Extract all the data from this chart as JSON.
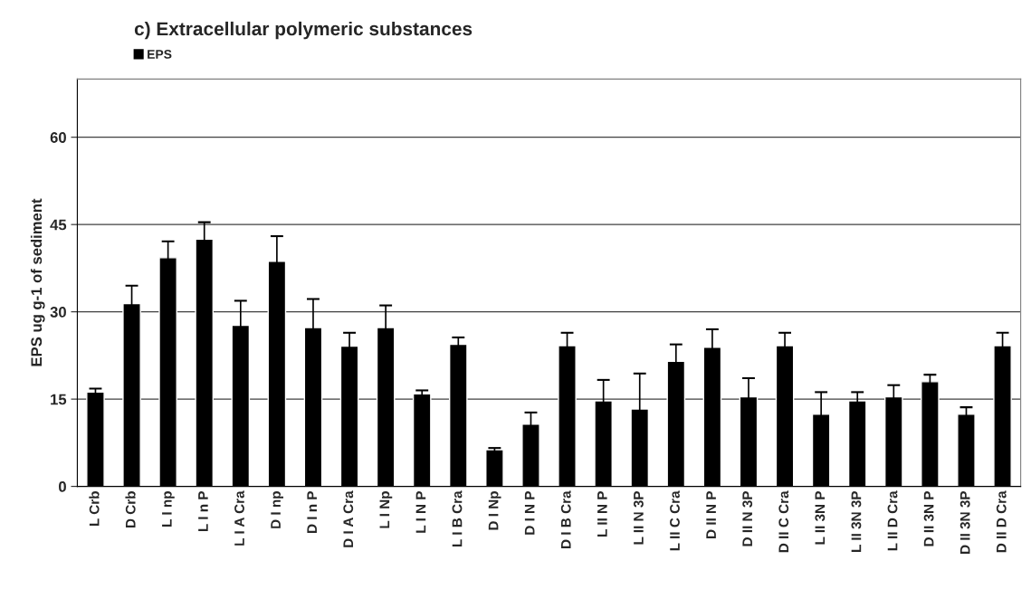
{
  "chart_data": {
    "type": "bar",
    "title": "c) Extracellular polymeric substances",
    "ylabel": "EPS ug g-1 of sediment",
    "categories": [
      "L Crb",
      "D Crb",
      "L I np",
      "L I n P",
      "L I A Cra",
      "D I np",
      "D I n P",
      "D I A Cra",
      "L I Np",
      "L I N P",
      "L I B Cra",
      "D I Np",
      "D I N P",
      "D I B Cra",
      "L II N P",
      "L II N 3P",
      "L II C Cra",
      "D II N P",
      "D II N 3P",
      "D II C Cra",
      "L II 3N P",
      "L II 3N 3P",
      "L II D Cra",
      "D II 3N P",
      "D II 3N 3P",
      "D II D Cra"
    ],
    "series": [
      {
        "name": "EPS",
        "color": "#000000",
        "values": [
          16.2,
          31.4,
          39.3,
          42.5,
          27.7,
          38.7,
          27.3,
          24.1,
          27.3,
          15.9,
          24.4,
          6.3,
          10.7,
          24.2,
          14.7,
          13.3,
          21.5,
          23.9,
          15.4,
          24.2,
          12.4,
          14.7,
          15.4,
          18.0,
          12.4,
          24.2
        ],
        "errors": [
          0.6,
          3.1,
          2.8,
          2.9,
          4.2,
          4.3,
          4.9,
          2.3,
          3.8,
          0.6,
          1.2,
          0.3,
          2.0,
          2.2,
          3.6,
          6.1,
          2.9,
          3.1,
          3.2,
          2.2,
          3.8,
          1.5,
          2.0,
          1.2,
          1.2,
          2.2
        ]
      }
    ],
    "ylim": [
      0,
      70
    ],
    "yticks": [
      0,
      15,
      30,
      45,
      60
    ],
    "grid": "y",
    "legend": "top left"
  }
}
